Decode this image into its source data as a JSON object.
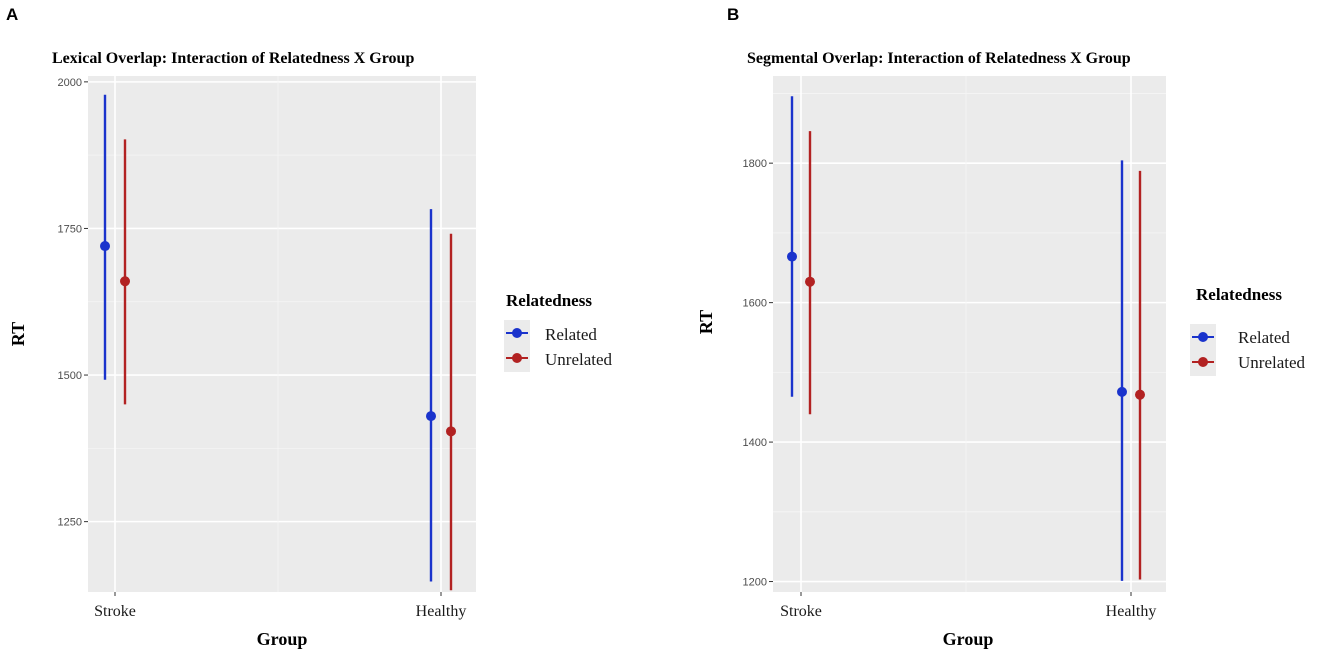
{
  "chart_data": [
    {
      "panel_label": "A",
      "type": "errorbar",
      "title": "Lexical Overlap: Interaction of Relatedness X Group",
      "xlabel": "Group",
      "ylabel": "RT",
      "categories": [
        "Stroke",
        "Healthy"
      ],
      "ylim": [
        1130,
        2010
      ],
      "yticks": [
        1250,
        1500,
        1750,
        2000
      ],
      "grid": true,
      "legend": {
        "title": "Relatedness",
        "position": "right"
      },
      "series": [
        {
          "name": "Related",
          "color": "#1a33cc",
          "points": [
            {
              "mean": 1720,
              "lower": 1492,
              "upper": 1978
            },
            {
              "mean": 1430,
              "lower": 1148,
              "upper": 1783
            }
          ]
        },
        {
          "name": "Unrelated",
          "color": "#b22222",
          "points": [
            {
              "mean": 1660,
              "lower": 1450,
              "upper": 1902
            },
            {
              "mean": 1404,
              "lower": 1133,
              "upper": 1741
            }
          ]
        }
      ]
    },
    {
      "panel_label": "B",
      "type": "errorbar",
      "title": "Segmental Overlap: Interaction of Relatedness X Group",
      "xlabel": "Group",
      "ylabel": "RT",
      "categories": [
        "Stroke",
        "Healthy"
      ],
      "ylim": [
        1185,
        1925
      ],
      "yticks": [
        1200,
        1400,
        1600,
        1800
      ],
      "grid": true,
      "legend": {
        "title": "Relatedness",
        "position": "right"
      },
      "series": [
        {
          "name": "Related",
          "color": "#1a33cc",
          "points": [
            {
              "mean": 1666,
              "lower": 1465,
              "upper": 1896
            },
            {
              "mean": 1472,
              "lower": 1201,
              "upper": 1804
            }
          ]
        },
        {
          "name": "Unrelated",
          "color": "#b22222",
          "points": [
            {
              "mean": 1630,
              "lower": 1440,
              "upper": 1846
            },
            {
              "mean": 1468,
              "lower": 1203,
              "upper": 1789
            }
          ]
        }
      ]
    }
  ]
}
